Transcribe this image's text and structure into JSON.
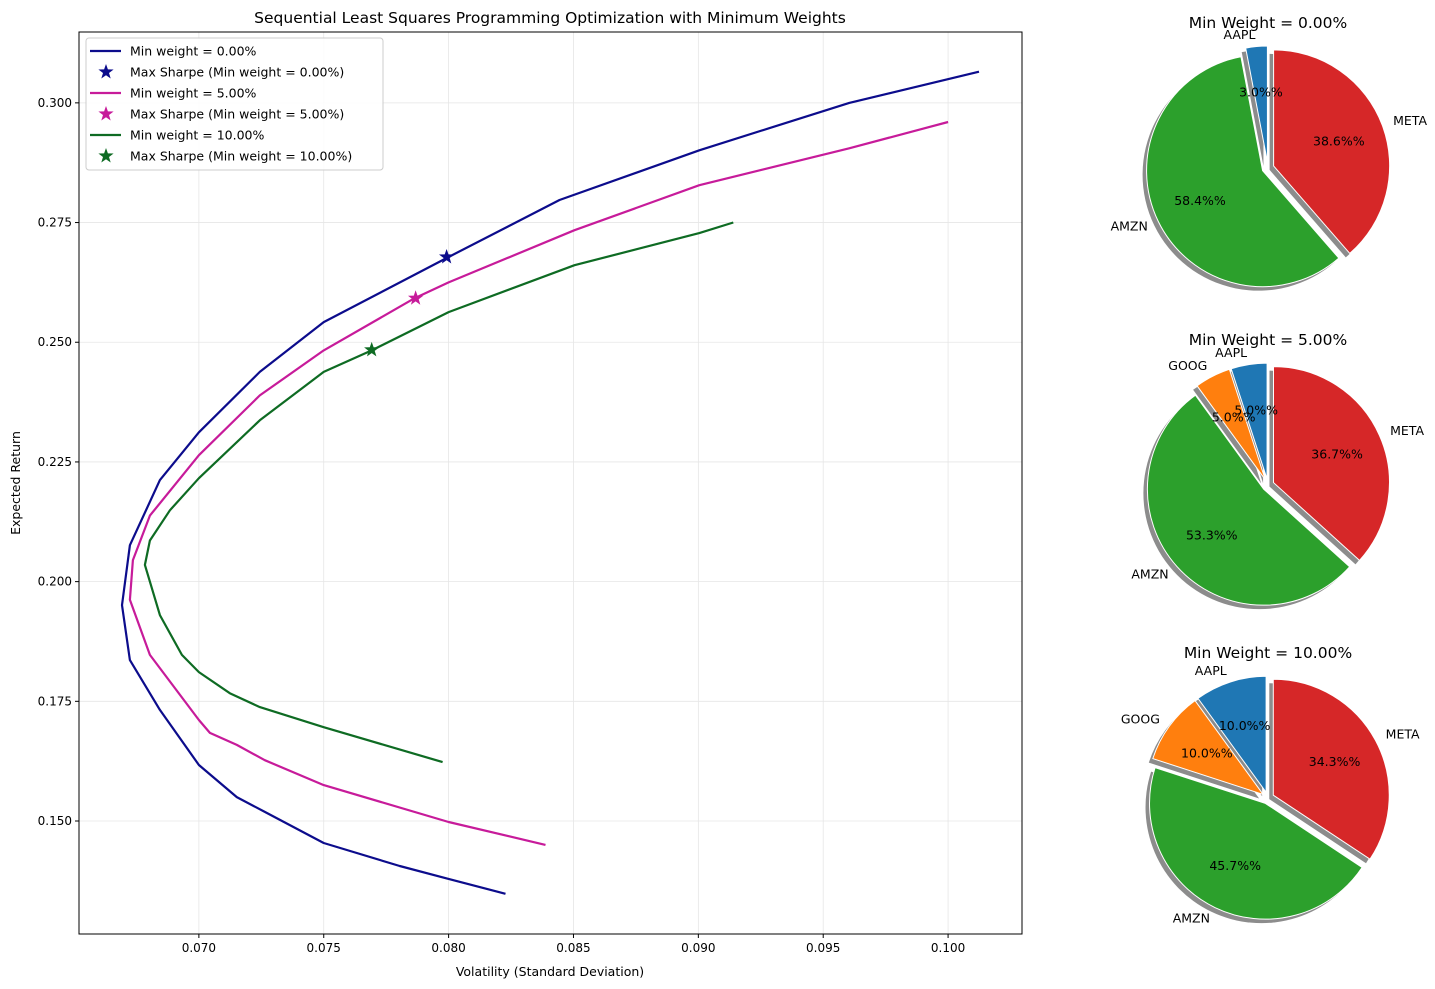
{
  "chart_data": [
    {
      "type": "line",
      "title": "Sequential Least Squares Programming Optimization with Minimum Weights",
      "xlabel": "Volatility (Standard Deviation)",
      "ylabel": "Expected Return",
      "xlim": [
        0.0652,
        0.10296
      ],
      "ylim": [
        0.1264,
        0.3148
      ],
      "xticks": [
        "0.070",
        "0.075",
        "0.080",
        "0.085",
        "0.090",
        "0.095",
        "0.100"
      ],
      "yticks": [
        "0.150",
        "0.175",
        "0.200",
        "0.225",
        "0.250",
        "0.275",
        "0.300"
      ],
      "grid": true,
      "legend_position": "top-left",
      "series": [
        {
          "name": "Min weight = 0.00%",
          "color": "#0c0c8c",
          "points": [
            [
              0.08228,
              0.1348
            ],
            [
              0.08,
              0.1379
            ],
            [
              0.07804,
              0.1406
            ],
            [
              0.075,
              0.1454
            ],
            [
              0.07264,
              0.1519
            ],
            [
              0.07152,
              0.155
            ],
            [
              0.07,
              0.1617
            ],
            [
              0.06844,
              0.1732
            ],
            [
              0.06724,
              0.1836
            ],
            [
              0.06692,
              0.1951
            ],
            [
              0.06724,
              0.2076
            ],
            [
              0.06844,
              0.2212
            ],
            [
              0.07,
              0.2312
            ],
            [
              0.07244,
              0.2438
            ],
            [
              0.075,
              0.2542
            ],
            [
              0.08,
              0.2678
            ],
            [
              0.08444,
              0.2797
            ],
            [
              0.09004,
              0.2901
            ],
            [
              0.09604,
              0.3
            ],
            [
              0.10124,
              0.3065
            ]
          ],
          "star_label": "Max Sharpe (Min weight = 0.00%)",
          "max_sharpe": [
            0.07992,
            0.2678
          ]
        },
        {
          "name": "Min weight = 5.00%",
          "color": "#c71b9a",
          "points": [
            [
              0.08388,
              0.145
            ],
            [
              0.08,
              0.1498
            ],
            [
              0.075,
              0.1575
            ],
            [
              0.07264,
              0.1627
            ],
            [
              0.07152,
              0.1659
            ],
            [
              0.07044,
              0.1684
            ],
            [
              0.07,
              0.1711
            ],
            [
              0.06804,
              0.1847
            ],
            [
              0.06724,
              0.1962
            ],
            [
              0.06736,
              0.2045
            ],
            [
              0.06804,
              0.2138
            ],
            [
              0.07,
              0.2264
            ],
            [
              0.07244,
              0.2389
            ],
            [
              0.075,
              0.2483
            ],
            [
              0.07864,
              0.2592
            ],
            [
              0.08,
              0.2625
            ],
            [
              0.08504,
              0.2734
            ],
            [
              0.09004,
              0.2828
            ],
            [
              0.09604,
              0.2905
            ],
            [
              0.1,
              0.296
            ]
          ],
          "star_label": "Max Sharpe (Min weight = 5.00%)",
          "max_sharpe": [
            0.07868,
            0.2592
          ]
        },
        {
          "name": "Min weight = 10.00%",
          "color": "#0e6b23",
          "points": [
            [
              0.07976,
              0.1623
            ],
            [
              0.075,
              0.1696
            ],
            [
              0.07244,
              0.1738
            ],
            [
              0.07124,
              0.1767
            ],
            [
              0.07,
              0.1811
            ],
            [
              0.06932,
              0.1847
            ],
            [
              0.06844,
              0.193
            ],
            [
              0.06784,
              0.2035
            ],
            [
              0.06804,
              0.2086
            ],
            [
              0.06884,
              0.2149
            ],
            [
              0.07,
              0.2216
            ],
            [
              0.07244,
              0.2337
            ],
            [
              0.075,
              0.2438
            ],
            [
              0.07692,
              0.2483
            ],
            [
              0.08,
              0.2563
            ],
            [
              0.08504,
              0.2661
            ],
            [
              0.09004,
              0.2728
            ],
            [
              0.0914,
              0.275
            ]
          ],
          "star_label": "Max Sharpe (Min weight = 10.00%)",
          "max_sharpe": [
            0.07692,
            0.2484
          ]
        }
      ]
    },
    {
      "type": "pie",
      "title": "Min Weight = 0.00%",
      "slices": [
        {
          "label": "AAPL",
          "value": 3.0,
          "pct": "3.0%%",
          "color": "#1f77b4"
        },
        {
          "label": "AMZN",
          "value": 58.4,
          "pct": "58.4%%",
          "color": "#2ca02c"
        },
        {
          "label": "META",
          "value": 38.6,
          "pct": "38.6%%",
          "color": "#d62728"
        }
      ]
    },
    {
      "type": "pie",
      "title": "Min Weight = 5.00%",
      "slices": [
        {
          "label": "AAPL",
          "value": 5.0,
          "pct": "5.0%%",
          "color": "#1f77b4"
        },
        {
          "label": "GOOG",
          "value": 5.0,
          "pct": "5.0%%",
          "color": "#ff7f0e"
        },
        {
          "label": "AMZN",
          "value": 53.3,
          "pct": "53.3%%",
          "color": "#2ca02c"
        },
        {
          "label": "META",
          "value": 36.7,
          "pct": "36.7%%",
          "color": "#d62728"
        }
      ]
    },
    {
      "type": "pie",
      "title": "Min Weight = 10.00%",
      "slices": [
        {
          "label": "AAPL",
          "value": 10.0,
          "pct": "10.0%%",
          "color": "#1f77b4"
        },
        {
          "label": "GOOG",
          "value": 10.0,
          "pct": "10.0%%",
          "color": "#ff7f0e"
        },
        {
          "label": "AMZN",
          "value": 45.7,
          "pct": "45.7%%",
          "color": "#2ca02c"
        },
        {
          "label": "META",
          "value": 34.3,
          "pct": "34.3%%",
          "color": "#d62728"
        }
      ]
    }
  ]
}
